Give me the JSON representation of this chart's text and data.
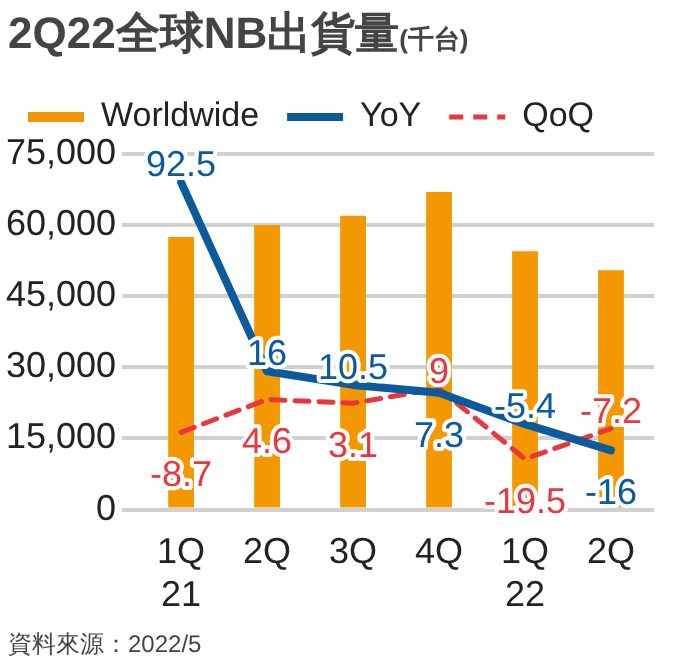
{
  "chart_data": {
    "type": "bar",
    "title": "2Q22全球NB出貨量",
    "ylabel": "(千台)",
    "categories": [
      "1Q\n21",
      "2Q",
      "3Q",
      "4Q",
      "1Q\n22",
      "2Q"
    ],
    "series": [
      {
        "name": "Worldwide",
        "color": "#f39800",
        "values": [
          57500,
          60000,
          62000,
          67000,
          54500,
          50500
        ]
      },
      {
        "name": "YoY",
        "type": "line",
        "axis": "y2",
        "color": "#0a5a9c",
        "line_style": "solid",
        "values": [
          92.5,
          16,
          10.5,
          7.3,
          -5.4,
          -16
        ],
        "value_labels": [
          "92.5",
          "16",
          "10.5",
          "7.3",
          "-5.4",
          "-16"
        ]
      },
      {
        "name": "QoQ",
        "type": "line",
        "axis": "y2",
        "color": "#e8383d",
        "line_style": "dashed",
        "values": [
          -8.7,
          4.6,
          3.1,
          9,
          -19.5,
          -7.2
        ],
        "value_labels": [
          "-8.7",
          "4.6",
          "3.1",
          "9",
          "-19.5",
          "-7.2"
        ]
      }
    ],
    "ylim": [
      0,
      75000
    ],
    "yticks": [
      0,
      {
        "value": 15000,
        "label": "15,000"
      },
      {
        "value": 30000,
        "label": "30,000"
      },
      {
        "value": 45000,
        "label": "45,000"
      },
      {
        "value": 60000,
        "label": "60,000"
      },
      {
        "value": 75000,
        "label": "75,000"
      }
    ],
    "y2lim": [
      -40,
      104
    ],
    "grid": "y",
    "legend": "top",
    "marker": "none",
    "annotations": [
      "資料來源：2022/5"
    ]
  }
}
